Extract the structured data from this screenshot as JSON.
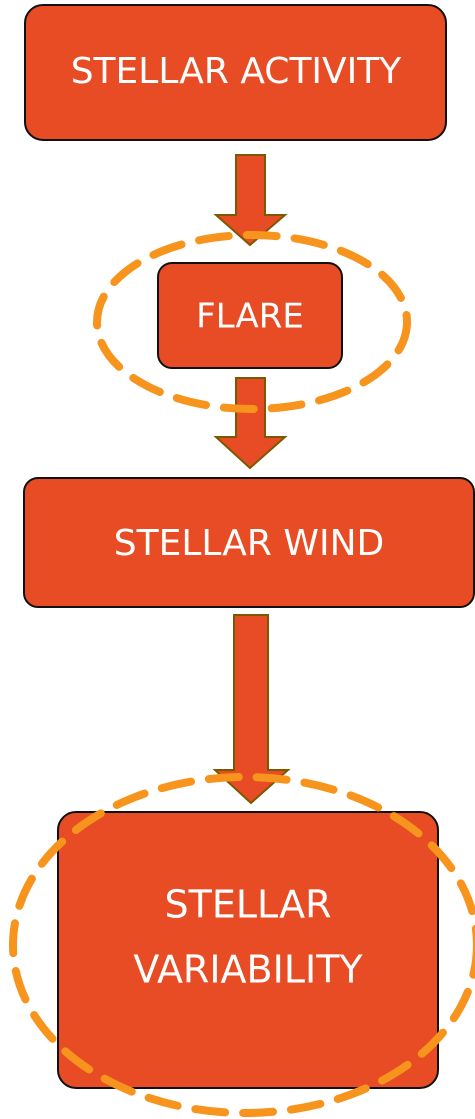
{
  "nodes": [
    {
      "label": "STELLAR ACTIVITY"
    },
    {
      "label": "FLARE"
    },
    {
      "label": "STELLAR WIND"
    },
    {
      "lines": [
        "STELLAR",
        "VARIABILITY"
      ]
    }
  ]
}
